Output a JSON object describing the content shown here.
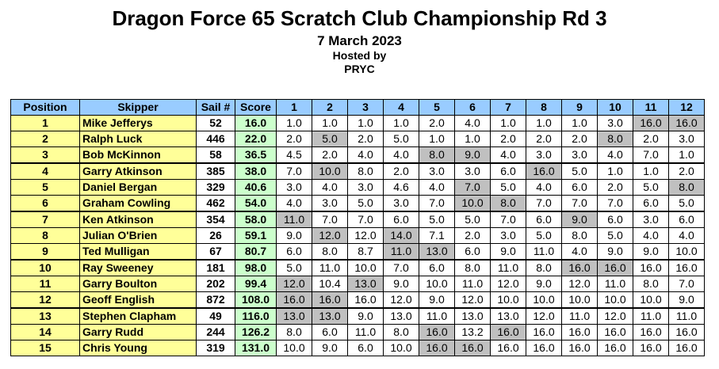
{
  "header": {
    "title": "Dragon Force 65 Scratch Club Championship Rd 3",
    "date": "7 March 2023",
    "hosted_by": "Hosted by",
    "club": "PRYC"
  },
  "table": {
    "columns": [
      "Position",
      "Skipper",
      "Sail #",
      "Score",
      "1",
      "2",
      "3",
      "4",
      "5",
      "6",
      "7",
      "8",
      "9",
      "10",
      "11",
      "12"
    ],
    "rows": [
      {
        "position": "1",
        "skipper": "Mike Jefferys",
        "sail": "52",
        "score": "16.0",
        "races": [
          "1.0",
          "1.0",
          "1.0",
          "1.0",
          "2.0",
          "4.0",
          "1.0",
          "1.0",
          "1.0",
          "3.0",
          "16.0",
          "16.0"
        ],
        "discards": [
          10,
          11
        ]
      },
      {
        "position": "2",
        "skipper": "Ralph Luck",
        "sail": "446",
        "score": "22.0",
        "races": [
          "2.0",
          "5.0",
          "2.0",
          "5.0",
          "1.0",
          "1.0",
          "2.0",
          "2.0",
          "2.0",
          "8.0",
          "2.0",
          "3.0"
        ],
        "discards": [
          1,
          9
        ]
      },
      {
        "position": "3",
        "skipper": "Bob McKinnon",
        "sail": "58",
        "score": "36.5",
        "races": [
          "4.5",
          "2.0",
          "4.0",
          "4.0",
          "8.0",
          "9.0",
          "4.0",
          "3.0",
          "3.0",
          "4.0",
          "7.0",
          "1.0"
        ],
        "discards": [
          4,
          5
        ]
      },
      {
        "position": "4",
        "skipper": "Garry Atkinson",
        "sail": "385",
        "score": "38.0",
        "races": [
          "7.0",
          "10.0",
          "8.0",
          "2.0",
          "3.0",
          "3.0",
          "6.0",
          "16.0",
          "5.0",
          "1.0",
          "1.0",
          "2.0"
        ],
        "discards": [
          1,
          7
        ]
      },
      {
        "position": "5",
        "skipper": "Daniel Bergan",
        "sail": "329",
        "score": "40.6",
        "races": [
          "3.0",
          "4.0",
          "3.0",
          "4.6",
          "4.0",
          "7.0",
          "5.0",
          "4.0",
          "6.0",
          "2.0",
          "5.0",
          "8.0"
        ],
        "discards": [
          5,
          11
        ]
      },
      {
        "position": "6",
        "skipper": "Graham Cowling",
        "sail": "462",
        "score": "54.0",
        "races": [
          "4.0",
          "3.0",
          "5.0",
          "3.0",
          "7.0",
          "10.0",
          "8.0",
          "7.0",
          "7.0",
          "7.0",
          "6.0",
          "5.0"
        ],
        "discards": [
          5,
          6
        ]
      },
      {
        "position": "7",
        "skipper": "Ken Atkinson",
        "sail": "354",
        "score": "58.0",
        "races": [
          "11.0",
          "7.0",
          "7.0",
          "6.0",
          "5.0",
          "5.0",
          "7.0",
          "6.0",
          "9.0",
          "6.0",
          "3.0",
          "6.0"
        ],
        "discards": [
          0,
          8
        ]
      },
      {
        "position": "8",
        "skipper": "Julian O'Brien",
        "sail": "26",
        "score": "59.1",
        "races": [
          "9.0",
          "12.0",
          "12.0",
          "14.0",
          "7.1",
          "2.0",
          "3.0",
          "5.0",
          "8.0",
          "5.0",
          "4.0",
          "4.0"
        ],
        "discards": [
          1,
          3
        ]
      },
      {
        "position": "9",
        "skipper": "Ted Mulligan",
        "sail": "67",
        "score": "80.7",
        "races": [
          "6.0",
          "8.0",
          "8.7",
          "11.0",
          "13.0",
          "6.0",
          "9.0",
          "11.0",
          "4.0",
          "9.0",
          "9.0",
          "10.0"
        ],
        "discards": [
          3,
          4
        ]
      },
      {
        "position": "10",
        "skipper": "Ray Sweeney",
        "sail": "181",
        "score": "98.0",
        "races": [
          "5.0",
          "11.0",
          "10.0",
          "7.0",
          "6.0",
          "8.0",
          "11.0",
          "8.0",
          "16.0",
          "16.0",
          "16.0",
          "16.0"
        ],
        "discards": [
          8,
          9
        ]
      },
      {
        "position": "11",
        "skipper": "Garry Boulton",
        "sail": "202",
        "score": "99.4",
        "races": [
          "12.0",
          "10.4",
          "13.0",
          "9.0",
          "10.0",
          "11.0",
          "12.0",
          "9.0",
          "12.0",
          "11.0",
          "8.0",
          "7.0"
        ],
        "discards": [
          0,
          2
        ]
      },
      {
        "position": "12",
        "skipper": "Geoff English",
        "sail": "872",
        "score": "108.0",
        "races": [
          "16.0",
          "16.0",
          "16.0",
          "12.0",
          "9.0",
          "12.0",
          "10.0",
          "10.0",
          "10.0",
          "10.0",
          "10.0",
          "9.0"
        ],
        "discards": [
          0,
          1
        ]
      },
      {
        "position": "13",
        "skipper": "Stephen Clapham",
        "sail": "49",
        "score": "116.0",
        "races": [
          "13.0",
          "13.0",
          "9.0",
          "13.0",
          "11.0",
          "13.0",
          "13.0",
          "12.0",
          "11.0",
          "12.0",
          "11.0",
          "11.0"
        ],
        "discards": [
          0,
          1
        ]
      },
      {
        "position": "14",
        "skipper": "Garry Rudd",
        "sail": "244",
        "score": "126.2",
        "races": [
          "8.0",
          "6.0",
          "11.0",
          "8.0",
          "16.0",
          "13.2",
          "16.0",
          "16.0",
          "16.0",
          "16.0",
          "16.0",
          "16.0"
        ],
        "discards": [
          4,
          6
        ]
      },
      {
        "position": "15",
        "skipper": "Chris Young",
        "sail": "319",
        "score": "131.0",
        "races": [
          "10.0",
          "9.0",
          "6.0",
          "10.0",
          "16.0",
          "16.0",
          "16.0",
          "16.0",
          "16.0",
          "16.0",
          "16.0",
          "16.0"
        ],
        "discards": [
          4,
          5
        ]
      }
    ]
  },
  "colors": {
    "header_bg": "#99ccff",
    "position_skipper_bg": "#ffff99",
    "score_bg": "#ccffcc",
    "discard_bg": "#c0c0c0"
  }
}
